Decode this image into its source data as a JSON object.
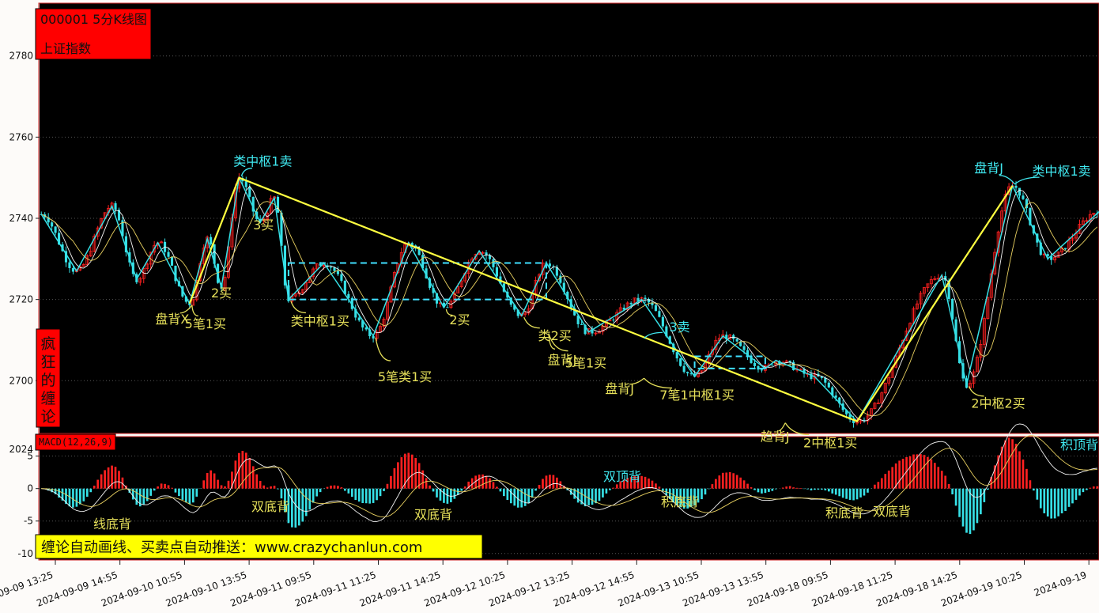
{
  "title_box": {
    "code_title": "000001 5分K线图",
    "name": "上证指数"
  },
  "side_label": "疯狂的缠论",
  "macd_label": "MACD(12,26,9)",
  "banner": "缠论自动画线、买卖点自动推送：www.crazychanlun.com",
  "colors": {
    "up": "#ff2020",
    "down": "#36e0e6",
    "stroke": "#36e0e6",
    "segment": "#ffff40",
    "zs": "#40e0ff",
    "annot_yellow": "#e6e05a",
    "annot_cyan": "#40e8f0",
    "bg": "#000000"
  },
  "chart_data": [
    {
      "type": "candlestick",
      "title": "000001 5分K线图",
      "series_name": "上证指数",
      "ylim": [
        2687,
        2793
      ],
      "y_ticks": [
        2700,
        2720,
        2740,
        2760,
        2780
      ],
      "x_tick_labels": [
        "2024-09-09 13:25",
        "2024-09-09 14:55",
        "2024-09-10 10:55",
        "2024-09-10 13:55",
        "2024-09-11 09:55",
        "2024-09-11 11:25",
        "2024-09-11 14:25",
        "2024-09-12 10:25",
        "2024-09-12 13:25",
        "2024-09-12 14:55",
        "2024-09-13 10:55",
        "2024-09-13 13:55",
        "2024-09-18 09:55",
        "2024-09-18 11:25",
        "2024-09-18 14:25",
        "2024-09-19 10:25",
        "2024-09-19"
      ],
      "bar_count": 300,
      "strokes": [
        [
          0,
          2741
        ],
        [
          10,
          2727
        ],
        [
          20,
          2743
        ],
        [
          27,
          2725
        ],
        [
          33,
          2734
        ],
        [
          42,
          2719
        ],
        [
          47,
          2735
        ],
        [
          51,
          2723
        ],
        [
          56,
          2750
        ],
        [
          62,
          2739
        ],
        [
          66,
          2745
        ],
        [
          70,
          2720
        ],
        [
          80,
          2729
        ],
        [
          94,
          2711
        ],
        [
          104,
          2734
        ],
        [
          114,
          2718
        ],
        [
          124,
          2732
        ],
        [
          136,
          2716
        ],
        [
          143,
          2729
        ],
        [
          155,
          2712
        ],
        [
          170,
          2720
        ],
        [
          185,
          2701
        ],
        [
          193,
          2711
        ],
        [
          205,
          2703
        ],
        [
          208,
          2705
        ],
        [
          219,
          2701
        ],
        [
          231,
          2690
        ],
        [
          255,
          2726
        ],
        [
          262,
          2699
        ],
        [
          275,
          2748
        ],
        [
          285,
          2730
        ],
        [
          300,
          2742
        ]
      ],
      "segments": [
        [
          42,
          2719
        ],
        [
          56,
          2750
        ],
        [
          231,
          2690
        ],
        [
          275,
          2748
        ]
      ],
      "zhongshu": [
        [
          70,
          2720,
          143,
          2729
        ],
        [
          185,
          2703,
          205,
          2706
        ]
      ],
      "annotations": [
        {
          "bar": 42,
          "price": 2719,
          "text": "盘背X",
          "color": "yellow"
        },
        {
          "bar": 42,
          "price": 2719,
          "text": "5笔1买",
          "color": "yellow"
        },
        {
          "bar": 51,
          "price": 2723,
          "text": "2买",
          "color": "yellow"
        },
        {
          "bar": 56,
          "price": 2750,
          "text": "类中枢1卖",
          "color": "cyan"
        },
        {
          "bar": 62,
          "price": 2739,
          "text": "3买",
          "color": "yellow"
        },
        {
          "bar": 70,
          "price": 2720,
          "text": "类中枢1买",
          "color": "yellow"
        },
        {
          "bar": 94,
          "price": 2711,
          "text": "5笔类1买",
          "color": "yellow"
        },
        {
          "bar": 114,
          "price": 2718,
          "text": "2买",
          "color": "yellow"
        },
        {
          "bar": 136,
          "price": 2716,
          "text": "类2买",
          "color": "yellow"
        },
        {
          "bar": 143,
          "price": 2712,
          "text": "盘背J",
          "color": "yellow"
        },
        {
          "bar": 143,
          "price": 2712,
          "text": "5笔1买",
          "color": "yellow"
        },
        {
          "bar": 170,
          "price": 2710,
          "text": "3卖",
          "color": "cyan"
        },
        {
          "bar": 170,
          "price": 2701,
          "text": "盘背J",
          "color": "yellow"
        },
        {
          "bar": 170,
          "price": 2701,
          "text": "7笔1中枢1买",
          "color": "yellow"
        },
        {
          "bar": 210,
          "price": 2690,
          "text": "趋背J",
          "color": "yellow"
        },
        {
          "bar": 210,
          "price": 2690,
          "text": "2中枢1买",
          "color": "yellow"
        },
        {
          "bar": 262,
          "price": 2699,
          "text": "2中枢2买",
          "color": "yellow"
        },
        {
          "bar": 275,
          "price": 2748,
          "text": "盘背J",
          "color": "cyan"
        },
        {
          "bar": 275,
          "price": 2748,
          "text": "类中枢1卖",
          "color": "cyan"
        }
      ]
    },
    {
      "type": "bar",
      "title": "MACD(12,26,9)",
      "ylim": [
        -11,
        8
      ],
      "y_ticks": [
        5,
        0,
        -5,
        -10
      ],
      "y_ticks_partial": [
        "2024"
      ],
      "annotations": [
        {
          "text": "线底背",
          "color": "yellow"
        },
        {
          "text": "双底背",
          "color": "yellow"
        },
        {
          "text": "双底背",
          "color": "yellow"
        },
        {
          "text": "双顶背",
          "color": "cyan"
        },
        {
          "text": "积底背",
          "color": "yellow"
        },
        {
          "text": "积底背",
          "color": "yellow"
        },
        {
          "text": "双底背",
          "color": "yellow"
        },
        {
          "text": "积顶背",
          "color": "cyan"
        }
      ]
    }
  ]
}
